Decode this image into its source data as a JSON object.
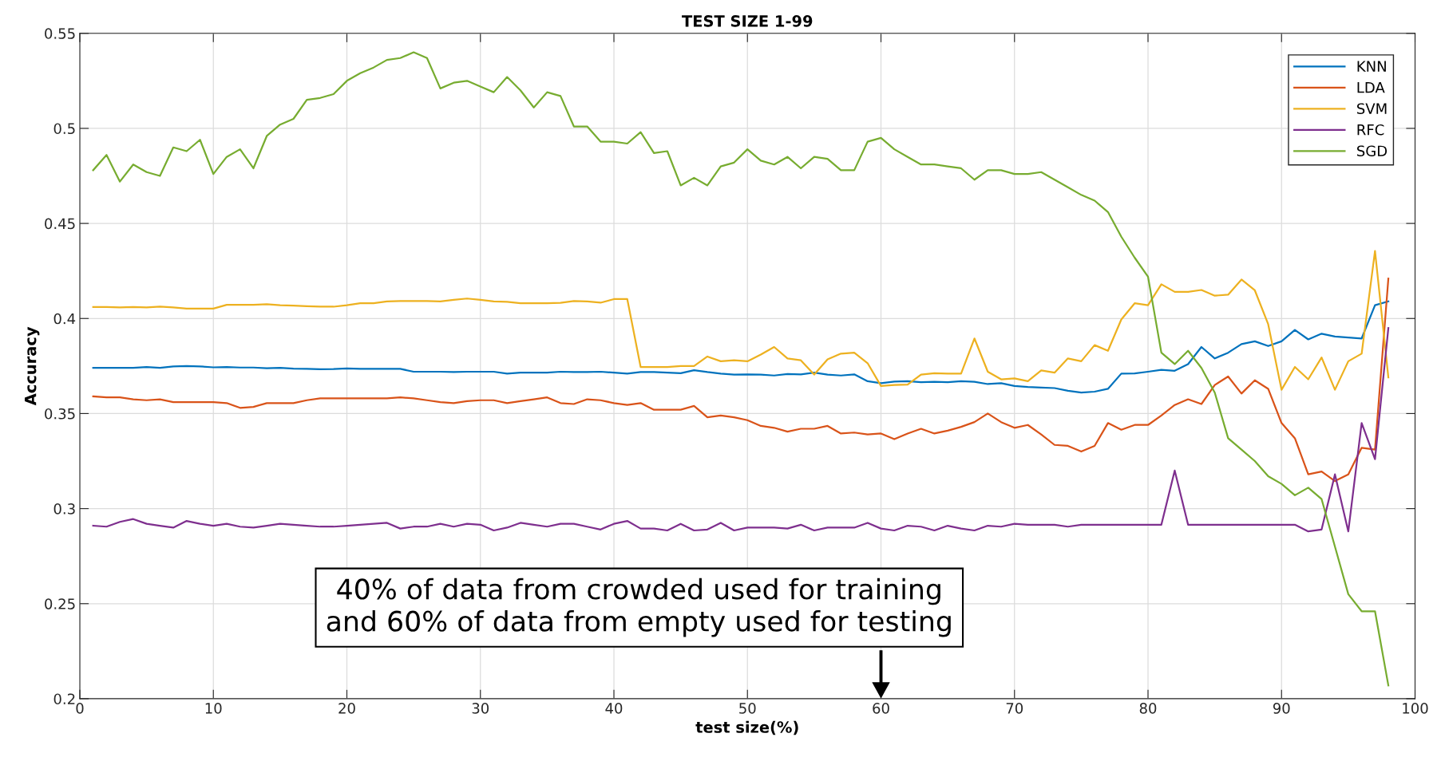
{
  "chart_data": {
    "type": "line",
    "title": "TEST SIZE 1-99",
    "xlabel": "test size(%)",
    "ylabel": "Accuracy",
    "x": [
      1,
      2,
      3,
      4,
      5,
      6,
      7,
      8,
      9,
      10,
      11,
      12,
      13,
      14,
      15,
      16,
      17,
      18,
      19,
      20,
      21,
      22,
      23,
      24,
      25,
      26,
      27,
      28,
      29,
      30,
      31,
      32,
      33,
      34,
      35,
      36,
      37,
      38,
      39,
      40,
      41,
      42,
      43,
      44,
      45,
      46,
      47,
      48,
      49,
      50,
      51,
      52,
      53,
      54,
      55,
      56,
      57,
      58,
      59,
      60,
      61,
      62,
      63,
      64,
      65,
      66,
      67,
      68,
      69,
      70,
      71,
      72,
      73,
      74,
      75,
      76,
      77,
      78,
      79,
      80,
      81,
      82,
      83,
      84,
      85,
      86,
      87,
      88,
      89,
      90,
      91,
      92,
      93,
      94,
      95,
      96,
      97,
      98
    ],
    "series": [
      {
        "name": "KNN",
        "color": "#0072bd",
        "values": [
          0.374,
          0.374,
          0.374,
          0.374,
          0.3745,
          0.374,
          0.3748,
          0.375,
          0.3748,
          0.3743,
          0.3745,
          0.3742,
          0.3742,
          0.3738,
          0.374,
          0.3736,
          0.3735,
          0.3733,
          0.3734,
          0.3737,
          0.3735,
          0.3735,
          0.3735,
          0.3735,
          0.372,
          0.372,
          0.372,
          0.3718,
          0.372,
          0.372,
          0.372,
          0.371,
          0.3715,
          0.3715,
          0.3715,
          0.372,
          0.3718,
          0.3718,
          0.372,
          0.3715,
          0.371,
          0.3718,
          0.3718,
          0.3715,
          0.3712,
          0.3728,
          0.3718,
          0.371,
          0.3705,
          0.3706,
          0.3705,
          0.37,
          0.3708,
          0.3706,
          0.3715,
          0.3705,
          0.37,
          0.3706,
          0.367,
          0.366,
          0.3668,
          0.367,
          0.3665,
          0.3667,
          0.3665,
          0.367,
          0.3667,
          0.3655,
          0.366,
          0.3645,
          0.364,
          0.3637,
          0.3634,
          0.362,
          0.361,
          0.3615,
          0.363,
          0.371,
          0.3711,
          0.372,
          0.373,
          0.3725,
          0.376,
          0.385,
          0.379,
          0.382,
          0.3865,
          0.388,
          0.3855,
          0.388,
          0.394,
          0.389,
          0.392,
          0.3905,
          0.39,
          0.3895,
          0.407,
          0.409
        ]
      },
      {
        "name": "LDA",
        "color": "#d95319",
        "values": [
          0.359,
          0.3585,
          0.3585,
          0.3575,
          0.357,
          0.3575,
          0.356,
          0.356,
          0.356,
          0.356,
          0.3555,
          0.353,
          0.3535,
          0.3555,
          0.3555,
          0.3555,
          0.357,
          0.358,
          0.358,
          0.358,
          0.358,
          0.358,
          0.358,
          0.3585,
          0.358,
          0.357,
          0.356,
          0.3555,
          0.3565,
          0.357,
          0.357,
          0.3555,
          0.3565,
          0.3575,
          0.3585,
          0.3555,
          0.355,
          0.3575,
          0.357,
          0.3555,
          0.3545,
          0.3555,
          0.352,
          0.352,
          0.352,
          0.354,
          0.348,
          0.349,
          0.348,
          0.3465,
          0.3435,
          0.3425,
          0.3405,
          0.342,
          0.342,
          0.3435,
          0.3395,
          0.34,
          0.339,
          0.3395,
          0.3365,
          0.3395,
          0.342,
          0.3395,
          0.341,
          0.343,
          0.3455,
          0.35,
          0.3455,
          0.3425,
          0.344,
          0.339,
          0.3335,
          0.333,
          0.33,
          0.333,
          0.345,
          0.3415,
          0.344,
          0.344,
          0.349,
          0.3545,
          0.3575,
          0.355,
          0.365,
          0.3695,
          0.3605,
          0.3675,
          0.363,
          0.345,
          0.337,
          0.318,
          0.3195,
          0.3145,
          0.318,
          0.332,
          0.331,
          0.421
        ]
      },
      {
        "name": "SVM",
        "color": "#edb120",
        "values": [
          0.406,
          0.406,
          0.4058,
          0.406,
          0.4058,
          0.4062,
          0.4058,
          0.4052,
          0.4052,
          0.4052,
          0.4072,
          0.4072,
          0.4072,
          0.4075,
          0.407,
          0.4068,
          0.4065,
          0.4062,
          0.4062,
          0.407,
          0.408,
          0.408,
          0.409,
          0.4092,
          0.4092,
          0.4092,
          0.409,
          0.4098,
          0.4105,
          0.4098,
          0.409,
          0.4088,
          0.408,
          0.408,
          0.408,
          0.4082,
          0.4092,
          0.409,
          0.4083,
          0.4102,
          0.4102,
          0.3745,
          0.3745,
          0.3745,
          0.375,
          0.375,
          0.38,
          0.3775,
          0.378,
          0.3775,
          0.381,
          0.385,
          0.379,
          0.378,
          0.3705,
          0.3785,
          0.3815,
          0.382,
          0.3765,
          0.3645,
          0.365,
          0.3652,
          0.3705,
          0.3712,
          0.371,
          0.371,
          0.3895,
          0.372,
          0.368,
          0.3685,
          0.367,
          0.3727,
          0.3715,
          0.379,
          0.3775,
          0.386,
          0.383,
          0.3995,
          0.408,
          0.407,
          0.418,
          0.414,
          0.414,
          0.415,
          0.412,
          0.4125,
          0.4205,
          0.4148,
          0.397,
          0.3625,
          0.3745,
          0.368,
          0.3795,
          0.3625,
          0.3775,
          0.3815,
          0.4355,
          0.369
        ]
      },
      {
        "name": "RFC",
        "color": "#7e2f8e",
        "values": [
          0.291,
          0.2905,
          0.293,
          0.2945,
          0.292,
          0.291,
          0.29,
          0.2935,
          0.292,
          0.291,
          0.292,
          0.2905,
          0.29,
          0.291,
          0.292,
          0.2915,
          0.291,
          0.2905,
          0.2905,
          0.291,
          0.2915,
          0.292,
          0.2925,
          0.2895,
          0.2905,
          0.2905,
          0.292,
          0.2905,
          0.292,
          0.2915,
          0.2885,
          0.29,
          0.2925,
          0.2915,
          0.2905,
          0.292,
          0.292,
          0.2905,
          0.289,
          0.292,
          0.2935,
          0.2895,
          0.2895,
          0.2885,
          0.292,
          0.2885,
          0.289,
          0.2925,
          0.2885,
          0.29,
          0.29,
          0.29,
          0.2895,
          0.2915,
          0.2885,
          0.29,
          0.29,
          0.29,
          0.2925,
          0.2895,
          0.2885,
          0.291,
          0.2905,
          0.2885,
          0.291,
          0.2895,
          0.2885,
          0.291,
          0.2905,
          0.292,
          0.2915,
          0.2915,
          0.2915,
          0.2905,
          0.2915,
          0.2915,
          0.2915,
          0.2915,
          0.2915,
          0.2915,
          0.2915,
          0.32,
          0.2915,
          0.2915,
          0.2915,
          0.2915,
          0.2915,
          0.2915,
          0.2915,
          0.2915,
          0.2915,
          0.288,
          0.289,
          0.318,
          0.288,
          0.345,
          0.326,
          0.395
        ]
      },
      {
        "name": "SGD",
        "color": "#77ac30",
        "values": [
          0.478,
          0.486,
          0.472,
          0.481,
          0.477,
          0.475,
          0.49,
          0.488,
          0.494,
          0.476,
          0.485,
          0.489,
          0.479,
          0.496,
          0.502,
          0.505,
          0.515,
          0.516,
          0.518,
          0.525,
          0.529,
          0.532,
          0.536,
          0.537,
          0.54,
          0.537,
          0.521,
          0.524,
          0.525,
          0.522,
          0.519,
          0.527,
          0.52,
          0.511,
          0.519,
          0.517,
          0.501,
          0.501,
          0.493,
          0.493,
          0.492,
          0.498,
          0.487,
          0.488,
          0.47,
          0.474,
          0.47,
          0.48,
          0.482,
          0.489,
          0.483,
          0.481,
          0.485,
          0.479,
          0.485,
          0.484,
          0.478,
          0.478,
          0.493,
          0.495,
          0.489,
          0.485,
          0.481,
          0.481,
          0.48,
          0.479,
          0.473,
          0.478,
          0.478,
          0.476,
          0.476,
          0.477,
          0.473,
          0.469,
          0.465,
          0.462,
          0.456,
          0.443,
          0.432,
          0.422,
          0.382,
          0.376,
          0.383,
          0.374,
          0.361,
          0.337,
          0.331,
          0.325,
          0.317,
          0.313,
          0.307,
          0.311,
          0.305,
          0.28,
          0.255,
          0.246,
          0.246,
          0.207
        ]
      }
    ],
    "xlim": [
      0,
      100
    ],
    "xticks": [
      0,
      10,
      20,
      30,
      40,
      50,
      60,
      70,
      80,
      90,
      100
    ],
    "ylim": [
      0.2,
      0.55
    ],
    "yticks": [
      0.2,
      0.25,
      0.3,
      0.35,
      0.4,
      0.45,
      0.5,
      0.55
    ],
    "grid": true,
    "legend": "top right",
    "marker": "none",
    "line_style": "solid",
    "annotations": [
      "40% of data from crowded used for training\nand 60% of data from empty used for testing"
    ]
  }
}
